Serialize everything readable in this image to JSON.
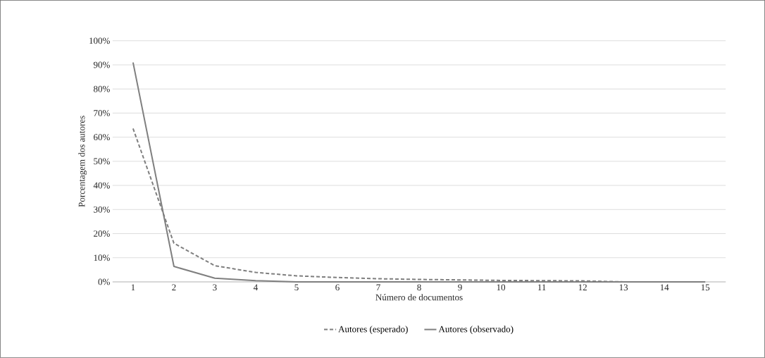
{
  "chart_data": {
    "type": "line",
    "xlabel": "Número de documentos",
    "ylabel": "Porcentagem dos autores",
    "categories": [
      "1",
      "2",
      "3",
      "4",
      "5",
      "6",
      "7",
      "8",
      "9",
      "10",
      "11",
      "12",
      "13",
      "14",
      "15"
    ],
    "series": [
      {
        "name": "Autores (esperado)",
        "color": "#7f7f7f",
        "line_style": "dashed",
        "values": [
          63.6,
          16,
          6.7,
          3.9,
          2.5,
          1.8,
          1.3,
          1,
          0.8,
          0.6,
          0.5,
          0.4,
          0,
          null,
          null
        ]
      },
      {
        "name": "Autores (observado)",
        "color": "#7f7f7f",
        "line_style": "solid",
        "values": [
          91,
          6.4,
          1.5,
          0.5,
          0,
          0,
          0,
          0,
          0,
          0,
          0,
          0,
          0,
          0,
          0
        ]
      }
    ],
    "ylim": [
      0,
      100
    ],
    "yticks": [
      {
        "value": 0,
        "label": "0%"
      },
      {
        "value": 10,
        "label": "10%"
      },
      {
        "value": 20,
        "label": "20%"
      },
      {
        "value": 30,
        "label": "30%"
      },
      {
        "value": 40,
        "label": "40%"
      },
      {
        "value": 50,
        "label": "50%"
      },
      {
        "value": 60,
        "label": "60%"
      },
      {
        "value": 70,
        "label": "70%"
      },
      {
        "value": 80,
        "label": "80%"
      },
      {
        "value": 90,
        "label": "90%"
      },
      {
        "value": 100,
        "label": "100%"
      }
    ],
    "grid": "y",
    "legend": "bottom",
    "marker": "none"
  }
}
